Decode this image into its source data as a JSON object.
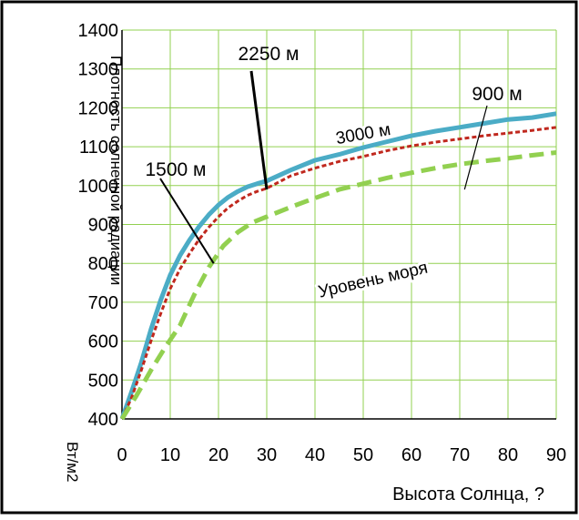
{
  "chart_data": {
    "type": "line",
    "title": "",
    "xlabel": "Высота Солнца, ?",
    "ylabel": "Плотность солнечной радиации",
    "ylabel_unit": "Вт/м2",
    "xlim": [
      0,
      90
    ],
    "ylim": [
      400,
      1400
    ],
    "xticks": [
      0,
      10,
      20,
      30,
      40,
      50,
      60,
      70,
      80,
      90
    ],
    "yticks": [
      400,
      500,
      600,
      700,
      800,
      900,
      1000,
      1100,
      1200,
      1300,
      1400
    ],
    "grid": true,
    "series": [
      {
        "name": "3000 м",
        "color": "#4bacc6",
        "dash": "solid",
        "x": [
          0,
          2,
          4,
          6,
          8,
          10,
          12,
          14,
          16,
          18,
          20,
          22,
          24,
          26,
          28,
          30,
          35,
          40,
          45,
          50,
          55,
          60,
          65,
          70,
          75,
          80,
          85,
          90
        ],
        "y": [
          400,
          470,
          545,
          630,
          705,
          770,
          820,
          860,
          895,
          925,
          950,
          970,
          985,
          997,
          1005,
          1012,
          1040,
          1065,
          1080,
          1098,
          1113,
          1128,
          1140,
          1150,
          1160,
          1170,
          1175,
          1185
        ]
      },
      {
        "name": "2250 м",
        "color": "#c0281e",
        "dash": "dot",
        "x": [
          0,
          2,
          4,
          6,
          8,
          10,
          12,
          14,
          16,
          18,
          20,
          22,
          24,
          26,
          28,
          30,
          35,
          40,
          45,
          50,
          55,
          60,
          65,
          70,
          75,
          80,
          85,
          90
        ],
        "y": [
          400,
          455,
          525,
          600,
          670,
          735,
          785,
          825,
          862,
          893,
          920,
          943,
          960,
          975,
          985,
          993,
          1025,
          1045,
          1062,
          1075,
          1090,
          1102,
          1112,
          1120,
          1128,
          1135,
          1142,
          1150
        ]
      },
      {
        "name": "Уровень моря",
        "color": "#92d050",
        "dash": "dash",
        "x": [
          0,
          3,
          6,
          9,
          12,
          15,
          18,
          21,
          24,
          27,
          30,
          35,
          40,
          45,
          50,
          55,
          60,
          65,
          70,
          75,
          80,
          85,
          90
        ],
        "y": [
          400,
          460,
          525,
          585,
          640,
          720,
          790,
          845,
          880,
          905,
          920,
          945,
          968,
          990,
          1005,
          1020,
          1033,
          1045,
          1055,
          1063,
          1070,
          1078,
          1085
        ]
      }
    ],
    "annotations": [
      {
        "text": "2250 м",
        "target_x": 30,
        "target_y": 990
      },
      {
        "text": "1500 м",
        "target_x": 19,
        "target_y": 800
      },
      {
        "text": "900 м",
        "target_x": 71,
        "target_y": 990
      },
      {
        "text": "3000 м",
        "target_x": 52,
        "target_y": 1145
      },
      {
        "text": "Уровень моря",
        "target_x": 50,
        "target_y": 810
      }
    ]
  }
}
